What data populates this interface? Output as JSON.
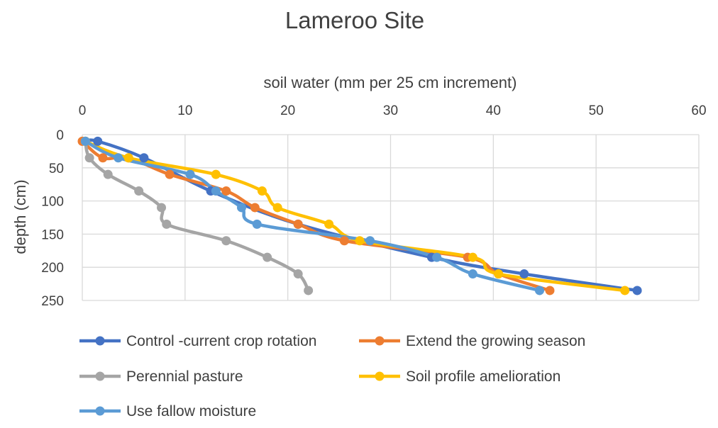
{
  "chart_data": {
    "type": "line",
    "title": "Lameroo Site",
    "xlabel": "soil water (mm per 25 cm increment)",
    "ylabel": "depth (cm)",
    "xlim": [
      0,
      60
    ],
    "ylim": [
      0,
      250
    ],
    "y_inverted": true,
    "x_axis_position": "top",
    "x_ticks": [
      0,
      10,
      20,
      30,
      40,
      50,
      60
    ],
    "y_ticks": [
      0,
      50,
      100,
      150,
      200,
      250
    ],
    "grid": true,
    "legend": "bottom",
    "smooth": true,
    "series": [
      {
        "name": "Control -current crop rotation",
        "color": "#4472C4",
        "x": [
          0.3,
          1.5,
          6,
          12.5,
          21,
          34,
          43,
          54
        ],
        "y": [
          10,
          10,
          35,
          85,
          135,
          185,
          210,
          235
        ]
      },
      {
        "name": "Extend the growing season",
        "color": "#ED7D31",
        "x": [
          0,
          2,
          4.5,
          8.5,
          14,
          16.8,
          21,
          25.5,
          37.5,
          40.5,
          45.5
        ],
        "y": [
          10,
          35,
          35,
          60,
          85,
          110,
          135,
          160,
          185,
          210,
          235
        ]
      },
      {
        "name": "Perennial pasture",
        "color": "#A5A5A5",
        "x": [
          0.3,
          0.7,
          2.5,
          5.5,
          7.7,
          8.2,
          14,
          18,
          21,
          22
        ],
        "y": [
          10,
          35,
          60,
          85,
          110,
          135,
          160,
          185,
          210,
          235
        ]
      },
      {
        "name": "Soil profile amelioration",
        "color": "#FFC000",
        "x": [
          0.3,
          4.5,
          13,
          17.5,
          19,
          24,
          27,
          38,
          40.5,
          52.8
        ],
        "y": [
          10,
          35,
          60,
          85,
          110,
          135,
          160,
          185,
          210,
          235
        ]
      },
      {
        "name": "Use fallow moisture",
        "color": "#5B9BD5",
        "x": [
          0.3,
          3.5,
          10.5,
          13,
          15.5,
          17,
          28,
          34.5,
          38,
          44.5
        ],
        "y": [
          10,
          35,
          60,
          85,
          110,
          135,
          160,
          185,
          210,
          235
        ]
      }
    ]
  }
}
